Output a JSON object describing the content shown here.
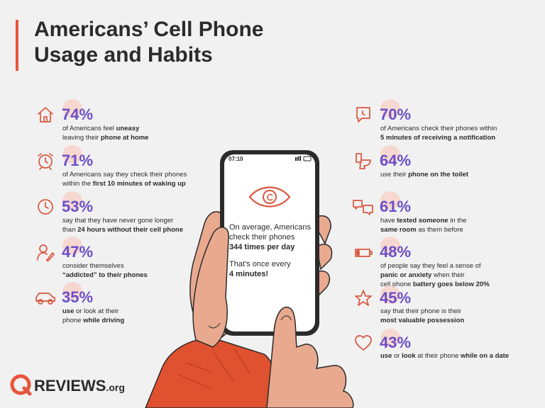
{
  "title": {
    "line1": "Americans’ Cell Phone",
    "line2": "Usage and Habits"
  },
  "phone": {
    "time": "07:10",
    "text1": "On average, Americans",
    "text2": "check their phones",
    "text3": "344 times per day",
    "text4": "That’s once every",
    "text5": "4 minutes!"
  },
  "stats_left": [
    {
      "icon": "house-icon",
      "pct": "74%",
      "l1a": "of Americans feel ",
      "l1b": "uneasy",
      "l2a": "leaving their ",
      "l2b": "phone at home"
    },
    {
      "icon": "alarm-clock-icon",
      "pct": "71%",
      "l1a": "of Americans say they check their phones",
      "l1b": "",
      "l2a": "within the ",
      "l2b": "first 10 minutes of waking up"
    },
    {
      "icon": "clock-icon",
      "pct": "53%",
      "l1a": "say that they have never gone longer",
      "l1b": "",
      "l2a": "than ",
      "l2b": "24 hours without their cell phone"
    },
    {
      "icon": "person-edit-icon",
      "pct": "47%",
      "l1a": "consider themselves",
      "l1b": "",
      "l2a": "",
      "l2b": "“addicted” to their phones"
    },
    {
      "icon": "car-icon",
      "pct": "35%",
      "l1a": "use",
      "l1b": " or look at their",
      "l2a": "phone ",
      "l2b": "while driving"
    }
  ],
  "stats_right": [
    {
      "icon": "chat-icon",
      "pct": "70%",
      "l1a": "of Americans check their phones within",
      "l1b": "",
      "l2a": "",
      "l2b": "5 minutes of receiving a notification"
    },
    {
      "icon": "toilet-icon",
      "pct": "64%",
      "l1a": "use their ",
      "l1b": "phone on the toilet",
      "l2a": "",
      "l2b": ""
    },
    {
      "icon": "texting-icon",
      "pct": "61%",
      "l1a": "have ",
      "l1b": "texted someone",
      "l1c": " in the",
      "l2a": "",
      "l2b": "same room",
      "l2c": " as them before"
    },
    {
      "icon": "battery-icon",
      "pct": "48%",
      "l1a": "of people say they feel a sense of",
      "l2a": "",
      "l2b": "panic or anxiety",
      "l2c": " when their",
      "l3a": "cell phone ",
      "l3b": "battery goes below 20%"
    },
    {
      "icon": "star-icon",
      "pct": "45%",
      "l1a": "say that their phone is their",
      "l2a": "",
      "l2b": "most valuable possession"
    },
    {
      "icon": "heart-icon",
      "pct": "43%",
      "l1a": "",
      "l1b": "use",
      "l1c": " or ",
      "l1d": "look",
      "l1e": " at their phone ",
      "l1f": "while on a date"
    }
  ],
  "logo": {
    "name": "REVIEWS",
    "suffix": ".org"
  },
  "colors": {
    "accent": "#e8553a",
    "purple": "#6b4fc8",
    "background": "#f1f1f1"
  }
}
